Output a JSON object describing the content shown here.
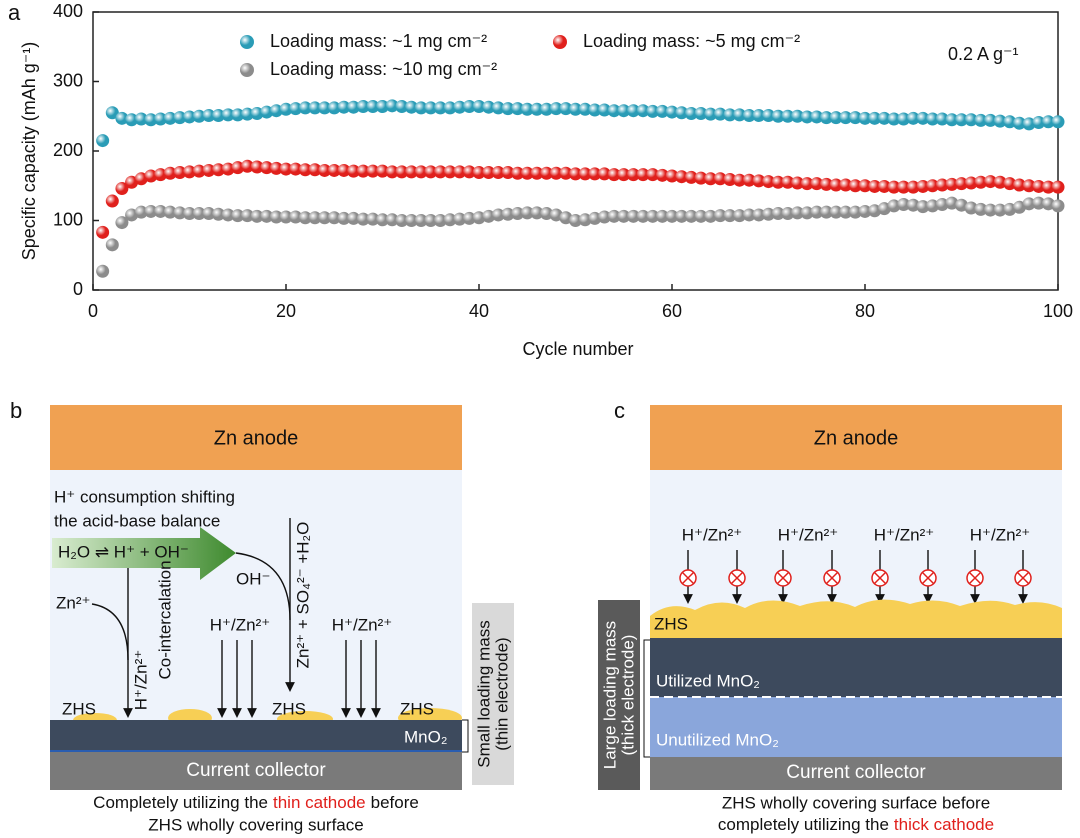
{
  "chart_data": {
    "type": "scatter",
    "panel_label": "a",
    "x_label": "Cycle number",
    "y_label": "Specific capacity (mAh g⁻¹)",
    "annotation": "0.2 A g⁻¹",
    "xlim": [
      0,
      100
    ],
    "xticks": [
      0,
      20,
      40,
      60,
      80,
      100
    ],
    "ylim": [
      0,
      400
    ],
    "yticks": [
      0,
      100,
      200,
      300,
      400
    ],
    "x": [
      1,
      2,
      3,
      4,
      5,
      6,
      7,
      8,
      9,
      10,
      11,
      12,
      13,
      14,
      15,
      16,
      17,
      18,
      19,
      20,
      21,
      22,
      23,
      24,
      25,
      26,
      27,
      28,
      29,
      30,
      31,
      32,
      33,
      34,
      35,
      36,
      37,
      38,
      39,
      40,
      41,
      42,
      43,
      44,
      45,
      46,
      47,
      48,
      49,
      50,
      51,
      52,
      53,
      54,
      55,
      56,
      57,
      58,
      59,
      60,
      61,
      62,
      63,
      64,
      65,
      66,
      67,
      68,
      69,
      70,
      71,
      72,
      73,
      74,
      75,
      76,
      77,
      78,
      79,
      80,
      81,
      82,
      83,
      84,
      85,
      86,
      87,
      88,
      89,
      90,
      91,
      92,
      93,
      94,
      95,
      96,
      97,
      98,
      99,
      100
    ],
    "series": [
      {
        "name": "Loading mass: ~1 mg cm⁻²",
        "color": "#2a9cb6",
        "values": [
          215,
          255,
          247,
          245,
          246,
          245,
          246,
          247,
          248,
          249,
          250,
          251,
          251,
          252,
          252,
          253,
          254,
          256,
          258,
          260,
          261,
          262,
          262,
          262,
          262,
          263,
          263,
          264,
          264,
          264,
          265,
          264,
          263,
          262,
          262,
          262,
          262,
          263,
          264,
          264,
          263,
          262,
          261,
          261,
          260,
          260,
          260,
          261,
          261,
          260,
          260,
          259,
          259,
          258,
          258,
          258,
          258,
          257,
          257,
          256,
          255,
          254,
          254,
          253,
          253,
          252,
          252,
          251,
          251,
          251,
          250,
          250,
          250,
          249,
          249,
          248,
          248,
          248,
          248,
          247,
          247,
          247,
          246,
          246,
          247,
          247,
          246,
          246,
          245,
          245,
          245,
          244,
          244,
          243,
          242,
          240,
          239,
          241,
          242,
          242
        ]
      },
      {
        "name": "Loading mass: ~5 mg cm⁻²",
        "color": "#e0201c",
        "values": [
          83,
          128,
          146,
          155,
          160,
          164,
          166,
          168,
          169,
          170,
          171,
          172,
          173,
          174,
          176,
          178,
          177,
          176,
          175,
          174,
          174,
          173,
          173,
          172,
          172,
          172,
          171,
          171,
          171,
          171,
          170,
          170,
          170,
          170,
          170,
          170,
          170,
          170,
          170,
          169,
          169,
          169,
          169,
          168,
          168,
          168,
          168,
          168,
          168,
          167,
          167,
          167,
          167,
          166,
          166,
          166,
          166,
          166,
          165,
          164,
          163,
          162,
          161,
          160,
          160,
          159,
          158,
          158,
          157,
          156,
          155,
          155,
          154,
          153,
          153,
          152,
          151,
          151,
          150,
          150,
          149,
          149,
          148,
          148,
          148,
          149,
          150,
          151,
          152,
          153,
          154,
          155,
          156,
          155,
          153,
          151,
          150,
          149,
          148,
          148
        ]
      },
      {
        "name": "Loading mass: ~10 mg cm⁻²",
        "color": "#8c8c8c",
        "values": [
          27,
          65,
          97,
          108,
          112,
          113,
          113,
          112,
          111,
          110,
          110,
          110,
          109,
          108,
          107,
          107,
          106,
          106,
          105,
          105,
          105,
          104,
          104,
          104,
          104,
          103,
          103,
          102,
          102,
          101,
          101,
          100,
          100,
          100,
          100,
          100,
          101,
          102,
          103,
          104,
          106,
          108,
          109,
          110,
          111,
          111,
          110,
          108,
          104,
          100,
          101,
          103,
          105,
          106,
          106,
          106,
          106,
          106,
          106,
          106,
          106,
          106,
          106,
          106,
          107,
          107,
          107,
          108,
          108,
          109,
          110,
          110,
          111,
          111,
          112,
          112,
          112,
          112,
          112,
          113,
          114,
          117,
          121,
          123,
          122,
          120,
          121,
          123,
          125,
          122,
          118,
          116,
          115,
          115,
          116,
          119,
          124,
          125,
          124,
          121
        ]
      }
    ]
  },
  "panel_b": {
    "label": "b",
    "anode": "Zn anode",
    "note_lines": [
      "H⁺ consumption shifting",
      "the acid-base balance"
    ],
    "equilibrium": "H₂O ⇌ H⁺ + OH⁻",
    "oh": "OH⁻",
    "zn": "Zn²⁺",
    "co_ion": "H⁺/Zn²⁺",
    "co_intercalation": "Co-intercalation",
    "products": "Zn²⁺ + SO₄²⁻ +H₂O",
    "ion_labels": [
      "H⁺/Zn²⁺",
      "H⁺/Zn²⁺"
    ],
    "zhs": [
      "ZHS",
      "ZHS",
      "ZHS"
    ],
    "cathode": "MnO₂",
    "collector": "Current collector",
    "side_label": [
      "Small loading mass",
      "(thin electrode)"
    ],
    "caption": {
      "line1_start": "Completely utilizing the",
      "highlight": "thin cathode",
      "line1_end": "before",
      "line2": "ZHS wholly covering surface"
    }
  },
  "panel_c": {
    "label": "c",
    "anode": "Zn anode",
    "ion_labels": [
      "H⁺/Zn²⁺",
      "H⁺/Zn²⁺",
      "H⁺/Zn²⁺",
      "H⁺/Zn²⁺"
    ],
    "zhs": "ZHS",
    "utilized": "Utilized MnO₂",
    "unutilized": "Unutilized MnO₂",
    "collector": "Current collector",
    "side_label": [
      "Large loading mass",
      "(thick electrode)"
    ],
    "caption": {
      "line1": "ZHS wholly covering surface before",
      "line2_start": "completely utilizing the",
      "highlight": "thick cathode"
    }
  }
}
